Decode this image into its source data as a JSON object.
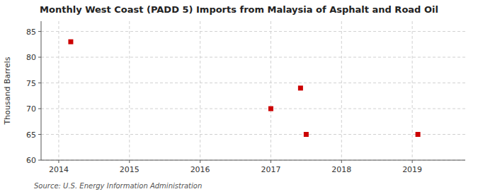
{
  "chart_data": {
    "type": "scatter",
    "title": "Monthly West Coast (PADD 5) Imports from Malaysia of Asphalt and Road Oil",
    "y_label": "Thousand Barrels",
    "source": "Source: U.S. Energy Information Administration",
    "x": [
      2014.17,
      2017.0,
      2017.42,
      2017.5,
      2019.08
    ],
    "values": [
      83,
      70,
      74,
      65,
      65
    ],
    "color": "#cc0000",
    "marker": "square",
    "xlim": [
      2013.75,
      2019.75
    ],
    "ylim": [
      60,
      87
    ],
    "xticks": [
      2014,
      2015,
      2016,
      2017,
      2018,
      2019
    ],
    "yticks": [
      60,
      65,
      70,
      75,
      80,
      85
    ],
    "grid": true
  }
}
